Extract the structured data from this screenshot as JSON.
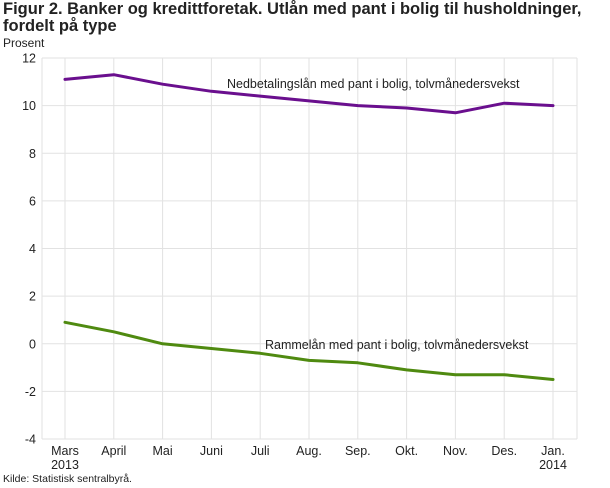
{
  "chart_data": {
    "type": "line",
    "title": "Figur 2. Banker og kredittforetak. Utlån med pant i bolig til husholdninger, fordelt på type",
    "ylabel": "Prosent",
    "source": "Kilde: Statistisk sentralbyrå.",
    "categories": [
      [
        "Mars",
        "2013"
      ],
      [
        "April"
      ],
      [
        "Mai"
      ],
      [
        "Juni"
      ],
      [
        "Juli"
      ],
      [
        "Aug."
      ],
      [
        "Sep."
      ],
      [
        "Okt."
      ],
      [
        "Nov."
      ],
      [
        "Des."
      ],
      [
        "Jan.",
        "2014"
      ]
    ],
    "ylim": [
      -4,
      12
    ],
    "yticks": [
      -4,
      -2,
      0,
      2,
      4,
      6,
      8,
      10,
      12
    ],
    "grid": true,
    "series": [
      {
        "name": "Nedbetalingslån med pant i bolig, tolvmånedersvekst",
        "color": "#6a0f8e",
        "values": [
          11.1,
          11.3,
          10.9,
          10.6,
          10.4,
          10.2,
          10.0,
          9.9,
          9.7,
          10.1,
          10.0
        ]
      },
      {
        "name": "Rammelån med pant i bolig, tolvmånedersvekst",
        "color": "#4f8a10",
        "values": [
          0.9,
          0.5,
          0.0,
          -0.2,
          -0.4,
          -0.7,
          -0.8,
          -1.1,
          -1.3,
          -1.3,
          -1.5
        ]
      }
    ]
  }
}
